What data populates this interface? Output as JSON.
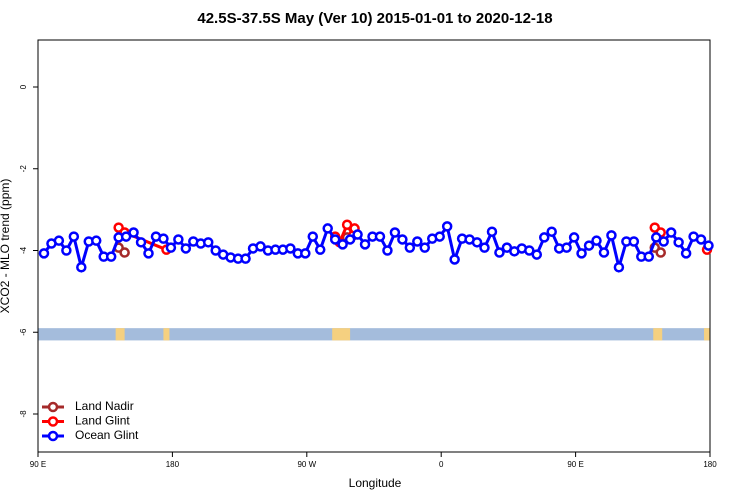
{
  "chart_data": {
    "type": "line",
    "title": "42.5S-37.5S May (Ver 10)   2015-01-01 to 2020-12-18",
    "x_label": "Longitude",
    "y_label": "XCO2 - MLO trend (ppm)",
    "xlim": [
      90,
      540
    ],
    "ylim": [
      -8.93,
      1.15
    ],
    "xticks": [
      {
        "value": 90,
        "label": "90 E"
      },
      180,
      {
        "value": 270,
        "label": "90 W"
      },
      {
        "value": 360,
        "label": "0"
      },
      {
        "value": 450,
        "label": "90 E"
      },
      {
        "value": 540,
        "label": "180"
      }
    ],
    "yticks": [
      0,
      -2,
      -4,
      -6,
      -8
    ],
    "legend": "bottom-left",
    "series": [
      {
        "name": "Land Nadir",
        "color": "#a52a2a",
        "x": [
          144,
          148,
          null,
          297,
          null,
          503,
          507
        ],
        "values": [
          -3.93,
          -4.05,
          null,
          -3.68,
          null,
          -3.93,
          -4.05
        ]
      },
      {
        "name": "Land Glint",
        "color": "#ff0000",
        "x": [
          144,
          148,
          176,
          null,
          289,
          292,
          297,
          301,
          302,
          null,
          503,
          507,
          null,
          538
        ],
        "values": [
          -3.44,
          -3.56,
          -3.98,
          null,
          -3.66,
          -3.8,
          -3.37,
          -3.63,
          -3.46,
          null,
          -3.44,
          -3.56,
          null,
          -3.98
        ]
      },
      {
        "name": "Ocean Glint",
        "color": "#0000ff",
        "x": [
          94,
          99,
          104,
          109,
          114,
          119,
          124,
          129,
          134,
          139,
          144,
          149,
          154,
          159,
          164,
          169,
          174,
          179,
          184,
          189,
          194,
          199,
          204,
          209,
          214,
          219,
          224,
          229,
          234,
          239,
          244,
          249,
          254,
          259,
          264,
          269,
          274,
          279,
          284,
          289,
          294,
          299,
          304,
          309,
          314,
          319,
          324,
          329,
          334,
          339,
          344,
          349,
          354,
          359,
          364,
          369,
          374,
          379,
          384,
          389,
          394,
          399,
          404,
          409,
          414,
          419,
          424,
          429,
          434,
          439,
          444,
          449,
          454,
          459,
          464,
          469,
          474,
          479,
          484,
          489,
          494,
          499,
          504,
          509,
          514,
          519,
          524,
          529,
          534,
          539
        ],
        "values": [
          -4.07,
          -3.83,
          -3.76,
          -4.0,
          -3.66,
          -4.41,
          -3.78,
          -3.76,
          -4.15,
          -4.15,
          -3.68,
          -3.66,
          -3.56,
          -3.8,
          -4.07,
          -3.66,
          -3.71,
          -3.93,
          -3.73,
          -3.95,
          -3.78,
          -3.83,
          -3.8,
          -4.0,
          -4.1,
          -4.17,
          -4.2,
          -4.2,
          -3.95,
          -3.9,
          -4.0,
          -3.98,
          -3.98,
          -3.95,
          -4.07,
          -4.07,
          -3.66,
          -3.98,
          -3.46,
          -3.73,
          -3.85,
          -3.73,
          -3.61,
          -3.85,
          -3.66,
          -3.66,
          -4.0,
          -3.56,
          -3.73,
          -3.93,
          -3.78,
          -3.93,
          -3.71,
          -3.66,
          -3.41,
          -4.22,
          -3.71,
          -3.73,
          -3.8,
          -3.93,
          -3.54,
          -4.05,
          -3.93,
          -4.02,
          -3.95,
          -4.0,
          -4.1,
          -3.68,
          -3.54,
          -3.95,
          -3.93,
          -3.68,
          -4.07,
          -3.88,
          -3.76,
          -4.05,
          -3.63,
          -4.41,
          -3.78,
          -3.78,
          -4.15,
          -4.15,
          -3.68,
          -3.78,
          -3.56,
          -3.8,
          -4.07,
          -3.66,
          -3.73,
          -3.88
        ]
      }
    ],
    "mask": {
      "y_range": [
        -5.9,
        -6.2
      ],
      "ocean_color": "#a4bcdc",
      "land_color": "#f5d080",
      "land": [
        [
          142,
          148
        ],
        [
          174,
          178
        ],
        [
          287,
          299
        ],
        [
          502,
          508
        ],
        [
          536,
          540
        ]
      ]
    }
  }
}
